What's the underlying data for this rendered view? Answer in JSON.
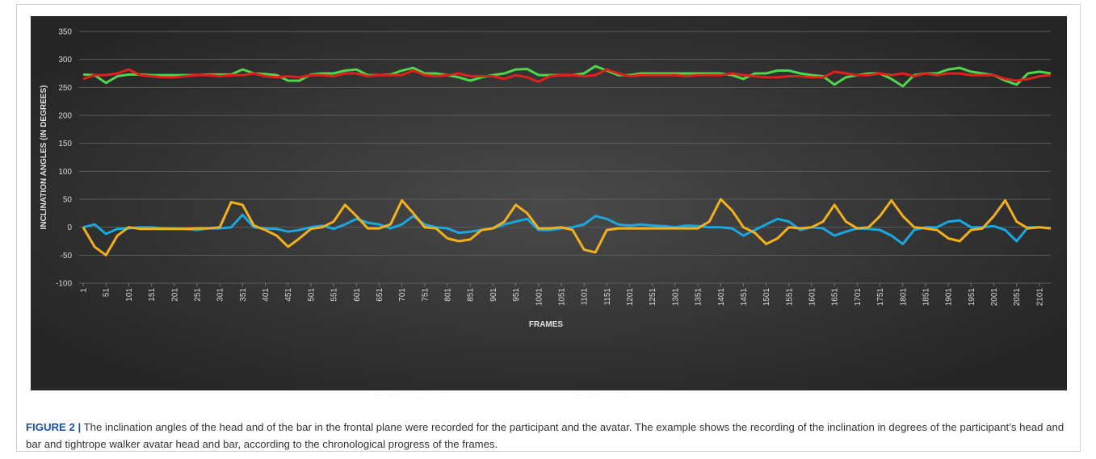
{
  "chart_data": {
    "type": "line",
    "y_label": "INCLINATION ANGLES (IN DEGREES)",
    "x_label": "FRAMES",
    "x": [
      1,
      26,
      51,
      76,
      101,
      126,
      151,
      176,
      201,
      226,
      251,
      276,
      301,
      326,
      351,
      376,
      401,
      426,
      451,
      476,
      501,
      526,
      551,
      576,
      601,
      626,
      651,
      676,
      701,
      726,
      751,
      776,
      801,
      826,
      851,
      876,
      901,
      926,
      951,
      976,
      1001,
      1026,
      1051,
      1076,
      1101,
      1126,
      1151,
      1176,
      1201,
      1226,
      1251,
      1276,
      1301,
      1326,
      1351,
      1376,
      1401,
      1426,
      1451,
      1476,
      1501,
      1526,
      1551,
      1576,
      1601,
      1626,
      1651,
      1676,
      1701,
      1726,
      1751,
      1776,
      1801,
      1826,
      1851,
      1876,
      1901,
      1926,
      1951,
      1976,
      2001,
      2026,
      2051,
      2076,
      2101,
      2126
    ],
    "series": [
      {
        "name": "Participant's head",
        "color": "#4fd64a",
        "values": [
          273,
          272,
          258,
          270,
          273,
          273,
          272,
          272,
          272,
          272,
          272,
          273,
          273,
          273,
          282,
          275,
          274,
          272,
          262,
          262,
          273,
          275,
          275,
          280,
          282,
          272,
          272,
          273,
          280,
          285,
          275,
          275,
          272,
          268,
          262,
          268,
          272,
          275,
          282,
          283,
          272,
          272,
          272,
          272,
          275,
          288,
          280,
          272,
          272,
          275,
          275,
          275,
          275,
          275,
          275,
          275,
          275,
          272,
          265,
          275,
          275,
          280,
          280,
          275,
          272,
          270,
          255,
          268,
          272,
          275,
          275,
          265,
          252,
          272,
          275,
          275,
          282,
          285,
          278,
          275,
          272,
          262,
          255,
          275,
          278,
          275
        ]
      },
      {
        "name": "Participant's bar",
        "color": "#1aa7e0",
        "values": [
          0,
          5,
          -12,
          -3,
          -2,
          0,
          0,
          -2,
          -2,
          -3,
          -5,
          -2,
          -2,
          0,
          22,
          0,
          -2,
          -3,
          -8,
          -5,
          0,
          3,
          -3,
          5,
          15,
          8,
          5,
          -2,
          5,
          20,
          5,
          0,
          -2,
          -10,
          -8,
          -5,
          -2,
          5,
          10,
          15,
          -5,
          -5,
          -2,
          0,
          5,
          20,
          15,
          5,
          3,
          5,
          3,
          2,
          0,
          3,
          2,
          0,
          0,
          -2,
          -15,
          -5,
          5,
          15,
          10,
          -5,
          0,
          -2,
          -15,
          -8,
          -2,
          -3,
          -5,
          -15,
          -30,
          -5,
          0,
          0,
          10,
          12,
          0,
          0,
          2,
          -5,
          -25,
          0,
          0,
          -2
        ]
      },
      {
        "name": "Tightrope walker's head",
        "color": "#e0201c",
        "values": [
          265,
          272,
          272,
          275,
          282,
          272,
          270,
          268,
          268,
          270,
          272,
          272,
          270,
          272,
          272,
          275,
          270,
          268,
          270,
          268,
          272,
          272,
          270,
          275,
          275,
          270,
          272,
          272,
          272,
          280,
          272,
          270,
          272,
          275,
          270,
          270,
          270,
          265,
          272,
          268,
          260,
          270,
          272,
          272,
          270,
          272,
          282,
          275,
          270,
          272,
          272,
          272,
          272,
          270,
          272,
          272,
          272,
          275,
          272,
          270,
          268,
          268,
          270,
          270,
          268,
          268,
          278,
          275,
          272,
          272,
          275,
          272,
          275,
          270,
          275,
          272,
          275,
          275,
          272,
          272,
          272,
          265,
          262,
          265,
          270,
          272
        ]
      },
      {
        "name": "Tightrope walker's bar",
        "color": "#f2b01c",
        "values": [
          0,
          -35,
          -50,
          -15,
          0,
          -3,
          -3,
          -3,
          -3,
          -3,
          -2,
          -2,
          0,
          45,
          40,
          3,
          -5,
          -15,
          -35,
          -20,
          -3,
          0,
          10,
          40,
          20,
          -2,
          -2,
          5,
          48,
          25,
          0,
          -2,
          -20,
          -25,
          -22,
          -5,
          -2,
          10,
          40,
          25,
          -2,
          -2,
          0,
          -5,
          -40,
          -45,
          -5,
          -2,
          -2,
          -2,
          -2,
          -2,
          -2,
          -2,
          -2,
          10,
          50,
          30,
          0,
          -10,
          -30,
          -20,
          0,
          -2,
          0,
          10,
          40,
          10,
          -2,
          0,
          20,
          48,
          20,
          0,
          -2,
          -5,
          -20,
          -25,
          -5,
          -2,
          20,
          48,
          10,
          -2,
          0,
          -2
        ]
      }
    ],
    "xlim": [
      1,
      2126
    ],
    "xticks": [
      1,
      51,
      101,
      151,
      201,
      251,
      301,
      351,
      401,
      451,
      501,
      551,
      601,
      651,
      701,
      751,
      801,
      851,
      901,
      951,
      1001,
      1051,
      1101,
      1151,
      1201,
      1251,
      1301,
      1351,
      1401,
      1451,
      1501,
      1551,
      1601,
      1651,
      1701,
      1751,
      1801,
      1851,
      1901,
      1951,
      2001,
      2051,
      2101
    ],
    "ylim": [
      -100,
      350
    ],
    "yticks": [
      -100,
      -50,
      0,
      50,
      100,
      150,
      200,
      250,
      300,
      350
    ],
    "grid": true,
    "legend": "bottom"
  },
  "caption": {
    "label": "FIGURE 2 |",
    "text": "The inclination angles of the head and of the bar in the frontal plane were recorded for the participant and the avatar. The example shows the recording of the inclination in degrees of the participant’s head and bar and tightrope walker avatar head and bar, according to the chronological progress of the frames."
  }
}
